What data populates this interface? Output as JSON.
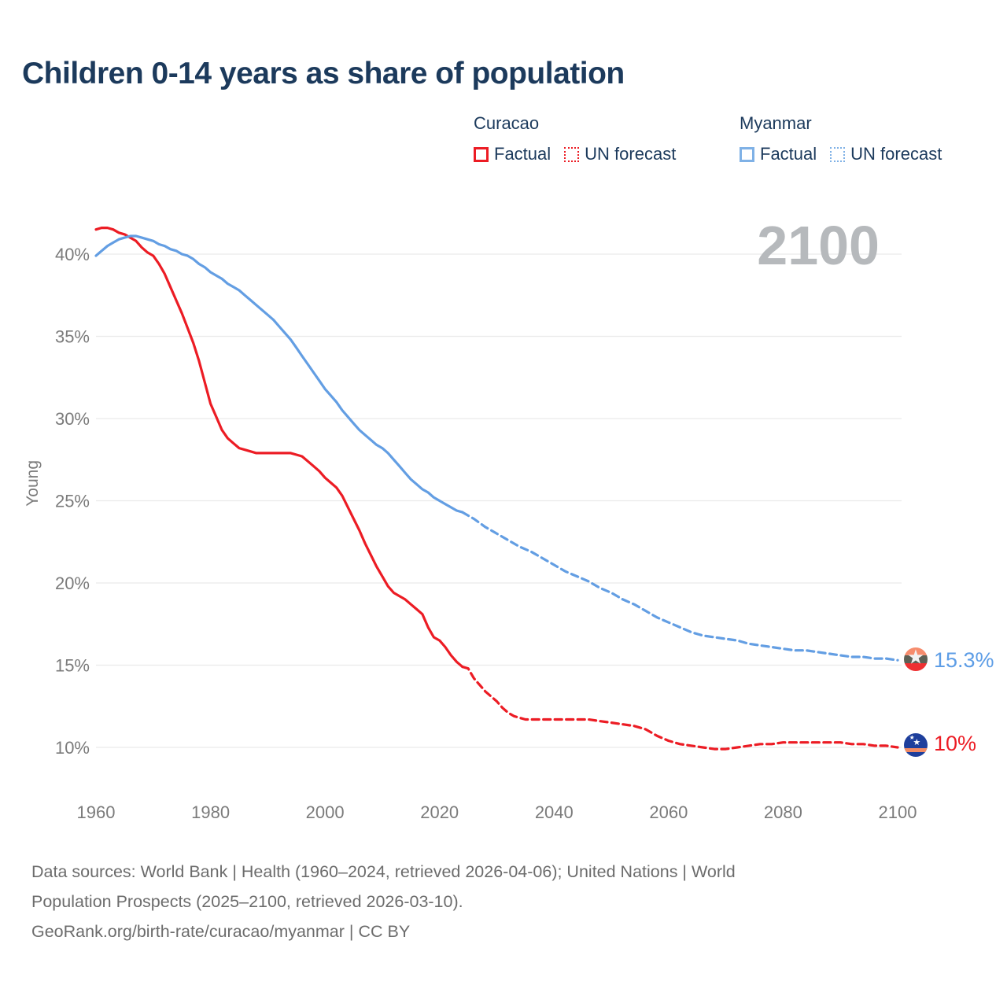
{
  "title": "Children 0-14 years as share of population",
  "watermark": "2100",
  "icons": {
    "star": "★"
  },
  "legend": {
    "groups": [
      {
        "country": "Curacao",
        "factual_label": "Factual",
        "forecast_label": "UN forecast",
        "color": "#ec1c24"
      },
      {
        "country": "Myanmar",
        "factual_label": "Factual",
        "forecast_label": "UN forecast",
        "color": "#7fb1e6"
      }
    ]
  },
  "end_labels": [
    {
      "series": "Myanmar UN forecast",
      "text": "15.3%",
      "color": "#5d9de6"
    },
    {
      "series": "Curacao UN forecast",
      "text": "10%",
      "color": "#ec1c24"
    }
  ],
  "flags": {
    "myanmar": {
      "top": "#f68c6d",
      "middle": "#5d6156",
      "bottom": "#ee3032",
      "star": "#f2f2f2"
    },
    "curacao": {
      "field": "#1e3f9c",
      "stripe": "#f08a64",
      "stars": "#ffffff"
    }
  },
  "footer": {
    "line1": "Data sources: World Bank | Health (1960–2024, retrieved 2026-04-06); United Nations | World",
    "line2": "Population Prospects (2025–2100, retrieved 2026-03-10).",
    "line3": "GeoRank.org/birth-rate/curacao/myanmar | CC BY"
  },
  "chart_data": {
    "type": "line",
    "title": "Children 0-14 years as share of population",
    "xlabel": "",
    "ylabel": "Young",
    "x_ticks": [
      1960,
      1980,
      2000,
      2020,
      2040,
      2060,
      2080,
      2100
    ],
    "y_ticks": [
      40,
      35,
      30,
      25,
      20,
      15,
      10
    ],
    "y_tick_suffix": "%",
    "xlim": [
      1960,
      2100
    ],
    "ylim": [
      8.5,
      43
    ],
    "grid": "horizontal",
    "legend_position": "top-right",
    "series": [
      {
        "id": "curacao-factual",
        "name": "Curacao Factual",
        "style": "solid",
        "color": "#ec1c24",
        "points": [
          [
            1960,
            41.5
          ],
          [
            1961,
            41.6
          ],
          [
            1962,
            41.6
          ],
          [
            1963,
            41.5
          ],
          [
            1964,
            41.3
          ],
          [
            1965,
            41.2
          ],
          [
            1966,
            41.0
          ],
          [
            1967,
            40.8
          ],
          [
            1968,
            40.4
          ],
          [
            1969,
            40.1
          ],
          [
            1970,
            39.9
          ],
          [
            1971,
            39.4
          ],
          [
            1972,
            38.8
          ],
          [
            1973,
            38.0
          ],
          [
            1974,
            37.2
          ],
          [
            1975,
            36.4
          ],
          [
            1976,
            35.5
          ],
          [
            1977,
            34.6
          ],
          [
            1978,
            33.5
          ],
          [
            1979,
            32.2
          ],
          [
            1980,
            30.9
          ],
          [
            1981,
            30.1
          ],
          [
            1982,
            29.3
          ],
          [
            1983,
            28.8
          ],
          [
            1984,
            28.5
          ],
          [
            1985,
            28.2
          ],
          [
            1986,
            28.1
          ],
          [
            1987,
            28.0
          ],
          [
            1988,
            27.9
          ],
          [
            1990,
            27.9
          ],
          [
            1992,
            27.9
          ],
          [
            1994,
            27.9
          ],
          [
            1995,
            27.8
          ],
          [
            1996,
            27.7
          ],
          [
            1997,
            27.4
          ],
          [
            1998,
            27.1
          ],
          [
            1999,
            26.8
          ],
          [
            2000,
            26.4
          ],
          [
            2001,
            26.1
          ],
          [
            2002,
            25.8
          ],
          [
            2003,
            25.3
          ],
          [
            2004,
            24.6
          ],
          [
            2005,
            23.9
          ],
          [
            2006,
            23.2
          ],
          [
            2007,
            22.4
          ],
          [
            2008,
            21.7
          ],
          [
            2009,
            21.0
          ],
          [
            2010,
            20.4
          ],
          [
            2011,
            19.8
          ],
          [
            2012,
            19.4
          ],
          [
            2013,
            19.2
          ],
          [
            2014,
            19.0
          ],
          [
            2015,
            18.7
          ],
          [
            2016,
            18.4
          ],
          [
            2017,
            18.1
          ],
          [
            2018,
            17.3
          ],
          [
            2019,
            16.7
          ],
          [
            2020,
            16.5
          ],
          [
            2021,
            16.1
          ],
          [
            2022,
            15.6
          ],
          [
            2023,
            15.2
          ],
          [
            2024,
            14.9
          ]
        ]
      },
      {
        "id": "curacao-forecast",
        "name": "Curacao UN forecast",
        "style": "dashed",
        "color": "#ec1c24",
        "points": [
          [
            2024,
            14.9
          ],
          [
            2025,
            14.8
          ],
          [
            2026,
            14.2
          ],
          [
            2027,
            13.8
          ],
          [
            2028,
            13.4
          ],
          [
            2029,
            13.1
          ],
          [
            2030,
            12.8
          ],
          [
            2031,
            12.4
          ],
          [
            2032,
            12.1
          ],
          [
            2033,
            11.9
          ],
          [
            2034,
            11.8
          ],
          [
            2035,
            11.7
          ],
          [
            2036,
            11.7
          ],
          [
            2038,
            11.7
          ],
          [
            2040,
            11.7
          ],
          [
            2042,
            11.7
          ],
          [
            2044,
            11.7
          ],
          [
            2046,
            11.7
          ],
          [
            2048,
            11.6
          ],
          [
            2050,
            11.5
          ],
          [
            2052,
            11.4
          ],
          [
            2054,
            11.3
          ],
          [
            2056,
            11.1
          ],
          [
            2058,
            10.7
          ],
          [
            2060,
            10.4
          ],
          [
            2062,
            10.2
          ],
          [
            2064,
            10.1
          ],
          [
            2066,
            10.0
          ],
          [
            2068,
            9.9
          ],
          [
            2070,
            9.9
          ],
          [
            2072,
            10.0
          ],
          [
            2074,
            10.1
          ],
          [
            2076,
            10.2
          ],
          [
            2078,
            10.2
          ],
          [
            2080,
            10.3
          ],
          [
            2084,
            10.3
          ],
          [
            2088,
            10.3
          ],
          [
            2090,
            10.3
          ],
          [
            2092,
            10.2
          ],
          [
            2094,
            10.2
          ],
          [
            2096,
            10.1
          ],
          [
            2098,
            10.1
          ],
          [
            2100,
            10.0
          ]
        ]
      },
      {
        "id": "myanmar-factual",
        "name": "Myanmar Factual",
        "style": "solid",
        "color": "#639ee3",
        "points": [
          [
            1960,
            39.9
          ],
          [
            1961,
            40.2
          ],
          [
            1962,
            40.5
          ],
          [
            1963,
            40.7
          ],
          [
            1964,
            40.9
          ],
          [
            1965,
            41.0
          ],
          [
            1966,
            41.1
          ],
          [
            1967,
            41.1
          ],
          [
            1968,
            41.0
          ],
          [
            1969,
            40.9
          ],
          [
            1970,
            40.8
          ],
          [
            1971,
            40.6
          ],
          [
            1972,
            40.5
          ],
          [
            1973,
            40.3
          ],
          [
            1974,
            40.2
          ],
          [
            1975,
            40.0
          ],
          [
            1976,
            39.9
          ],
          [
            1977,
            39.7
          ],
          [
            1978,
            39.4
          ],
          [
            1979,
            39.2
          ],
          [
            1980,
            38.9
          ],
          [
            1981,
            38.7
          ],
          [
            1982,
            38.5
          ],
          [
            1983,
            38.2
          ],
          [
            1984,
            38.0
          ],
          [
            1985,
            37.8
          ],
          [
            1986,
            37.5
          ],
          [
            1987,
            37.2
          ],
          [
            1988,
            36.9
          ],
          [
            1989,
            36.6
          ],
          [
            1990,
            36.3
          ],
          [
            1991,
            36.0
          ],
          [
            1992,
            35.6
          ],
          [
            1993,
            35.2
          ],
          [
            1994,
            34.8
          ],
          [
            1995,
            34.3
          ],
          [
            1996,
            33.8
          ],
          [
            1997,
            33.3
          ],
          [
            1998,
            32.8
          ],
          [
            1999,
            32.3
          ],
          [
            2000,
            31.8
          ],
          [
            2001,
            31.4
          ],
          [
            2002,
            31.0
          ],
          [
            2003,
            30.5
          ],
          [
            2004,
            30.1
          ],
          [
            2005,
            29.7
          ],
          [
            2006,
            29.3
          ],
          [
            2007,
            29.0
          ],
          [
            2008,
            28.7
          ],
          [
            2009,
            28.4
          ],
          [
            2010,
            28.2
          ],
          [
            2011,
            27.9
          ],
          [
            2012,
            27.5
          ],
          [
            2013,
            27.1
          ],
          [
            2014,
            26.7
          ],
          [
            2015,
            26.3
          ],
          [
            2016,
            26.0
          ],
          [
            2017,
            25.7
          ],
          [
            2018,
            25.5
          ],
          [
            2019,
            25.2
          ],
          [
            2020,
            25.0
          ],
          [
            2021,
            24.8
          ],
          [
            2022,
            24.6
          ],
          [
            2023,
            24.4
          ],
          [
            2024,
            24.3
          ]
        ]
      },
      {
        "id": "myanmar-forecast",
        "name": "Myanmar UN forecast",
        "style": "dashed",
        "color": "#639ee3",
        "points": [
          [
            2024,
            24.3
          ],
          [
            2026,
            23.9
          ],
          [
            2028,
            23.4
          ],
          [
            2030,
            23.0
          ],
          [
            2032,
            22.6
          ],
          [
            2034,
            22.2
          ],
          [
            2036,
            21.9
          ],
          [
            2038,
            21.5
          ],
          [
            2040,
            21.1
          ],
          [
            2042,
            20.7
          ],
          [
            2044,
            20.4
          ],
          [
            2046,
            20.1
          ],
          [
            2048,
            19.7
          ],
          [
            2050,
            19.4
          ],
          [
            2052,
            19.0
          ],
          [
            2054,
            18.7
          ],
          [
            2056,
            18.3
          ],
          [
            2058,
            17.9
          ],
          [
            2060,
            17.6
          ],
          [
            2062,
            17.3
          ],
          [
            2064,
            17.0
          ],
          [
            2066,
            16.8
          ],
          [
            2068,
            16.7
          ],
          [
            2070,
            16.6
          ],
          [
            2072,
            16.5
          ],
          [
            2074,
            16.3
          ],
          [
            2076,
            16.2
          ],
          [
            2078,
            16.1
          ],
          [
            2080,
            16.0
          ],
          [
            2082,
            15.9
          ],
          [
            2084,
            15.9
          ],
          [
            2086,
            15.8
          ],
          [
            2088,
            15.7
          ],
          [
            2090,
            15.6
          ],
          [
            2092,
            15.5
          ],
          [
            2094,
            15.5
          ],
          [
            2096,
            15.4
          ],
          [
            2098,
            15.4
          ],
          [
            2100,
            15.3
          ]
        ]
      }
    ],
    "end_markers": [
      {
        "series": "Myanmar",
        "year": 2100,
        "value": 15.3,
        "flag": "myanmar"
      },
      {
        "series": "Curacao",
        "year": 2100,
        "value": 10.0,
        "flag": "curacao"
      }
    ]
  }
}
